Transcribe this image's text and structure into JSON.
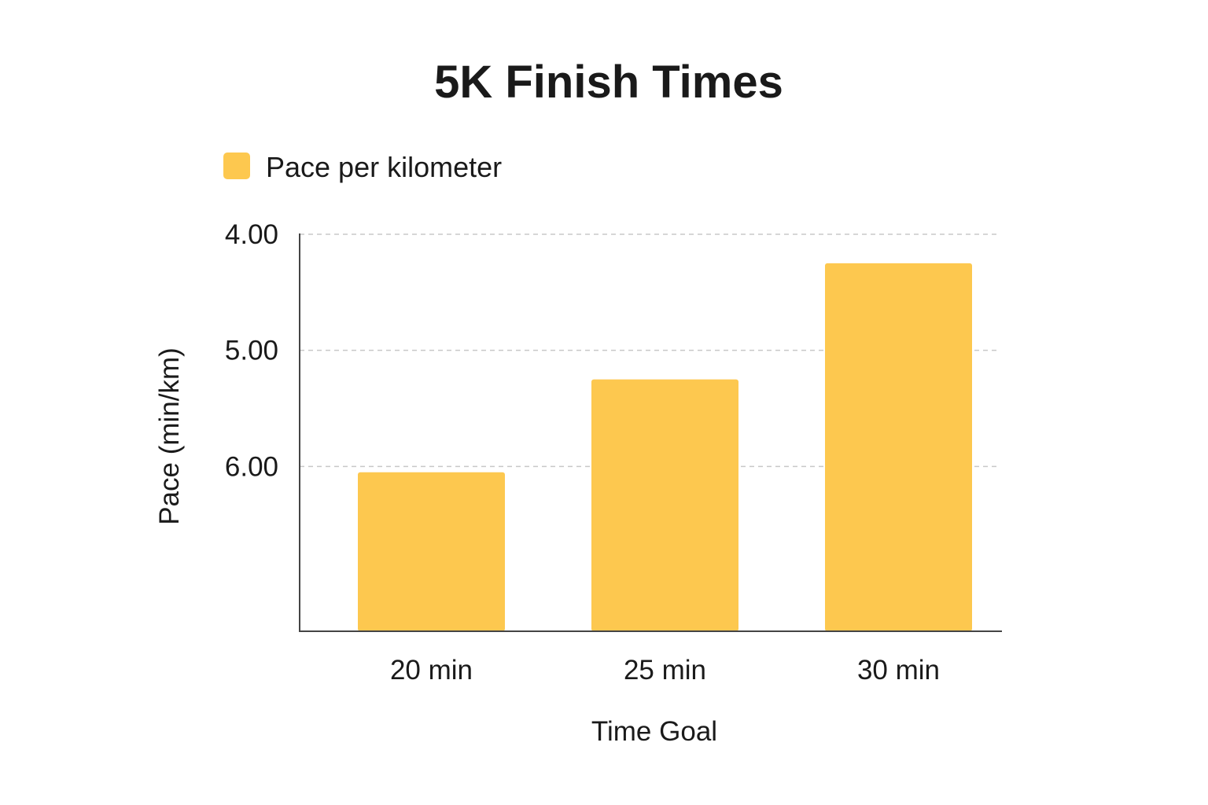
{
  "chart_data": {
    "type": "bar",
    "title": "5K Finish Times",
    "xlabel": "Time Goal",
    "ylabel": "Pace (min/km)",
    "categories": [
      "20 min",
      "25 min",
      "30 min"
    ],
    "series": [
      {
        "name": "Pace per kilometer",
        "values": [
          6.05,
          5.25,
          4.25
        ],
        "color": "#FDC84F"
      }
    ],
    "y_axis": {
      "inverted": true,
      "ticks": [
        4.0,
        5.0,
        6.0
      ],
      "tick_labels": [
        "4.00",
        "5.00",
        "6.00"
      ],
      "range": [
        4.0,
        7.42
      ]
    },
    "grid": "horizontal-dashed",
    "legend_position": "top-left"
  }
}
